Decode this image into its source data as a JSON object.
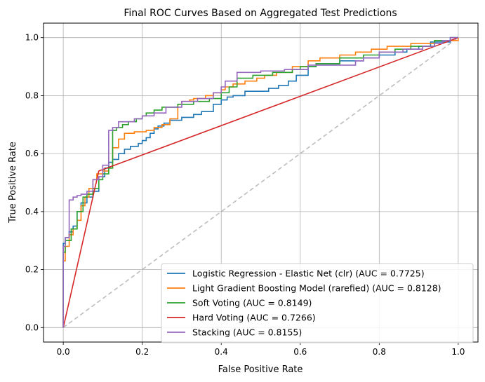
{
  "chart_data": {
    "type": "line",
    "title": "Final ROC Curves Based on Aggregated Test Predictions",
    "xlabel": "False Positive Rate",
    "ylabel": "True Positive Rate",
    "xlim": [
      -0.05,
      1.05
    ],
    "ylim": [
      -0.05,
      1.05
    ],
    "xticks": [
      0.0,
      0.2,
      0.4,
      0.6,
      0.8,
      1.0
    ],
    "yticks": [
      0.0,
      0.2,
      0.4,
      0.6,
      0.8,
      1.0
    ],
    "tick_labels_x": [
      "0.0",
      "0.2",
      "0.4",
      "0.6",
      "0.8",
      "1.0"
    ],
    "tick_labels_y": [
      "0.0",
      "0.2",
      "0.4",
      "0.6",
      "0.8",
      "1.0"
    ],
    "grid": true,
    "legend_position": "lower-right",
    "chance_line": {
      "x": [
        0,
        1
      ],
      "y": [
        0,
        1
      ],
      "color": "#bdbdbd",
      "style": "dashed"
    },
    "series": [
      {
        "name": "Logistic Regression - Elastic Net (clr) (AUC = 0.7725)",
        "color": "#1f77b4",
        "x": [
          0,
          0,
          0.005,
          0.005,
          0.015,
          0.015,
          0.025,
          0.025,
          0.035,
          0.035,
          0.045,
          0.045,
          0.06,
          0.06,
          0.075,
          0.075,
          0.09,
          0.09,
          0.105,
          0.105,
          0.115,
          0.115,
          0.125,
          0.125,
          0.14,
          0.14,
          0.155,
          0.155,
          0.17,
          0.17,
          0.19,
          0.19,
          0.2,
          0.2,
          0.21,
          0.21,
          0.22,
          0.22,
          0.23,
          0.23,
          0.24,
          0.24,
          0.255,
          0.255,
          0.27,
          0.27,
          0.3,
          0.3,
          0.33,
          0.33,
          0.35,
          0.35,
          0.38,
          0.38,
          0.4,
          0.4,
          0.415,
          0.415,
          0.43,
          0.43,
          0.46,
          0.46,
          0.52,
          0.52,
          0.545,
          0.545,
          0.57,
          0.57,
          0.59,
          0.59,
          0.62,
          0.62,
          0.64,
          0.64,
          0.7,
          0.7,
          0.76,
          0.76,
          0.8,
          0.8,
          0.84,
          0.84,
          0.87,
          0.87,
          0.9,
          0.9,
          0.93,
          0.93,
          0.98,
          0.98,
          1.0
        ],
        "y": [
          0,
          0.29,
          0.29,
          0.31,
          0.31,
          0.33,
          0.33,
          0.35,
          0.35,
          0.4,
          0.4,
          0.43,
          0.43,
          0.45,
          0.45,
          0.47,
          0.47,
          0.52,
          0.52,
          0.55,
          0.55,
          0.57,
          0.57,
          0.58,
          0.58,
          0.6,
          0.6,
          0.615,
          0.615,
          0.625,
          0.625,
          0.635,
          0.635,
          0.645,
          0.645,
          0.655,
          0.655,
          0.67,
          0.67,
          0.685,
          0.685,
          0.695,
          0.695,
          0.705,
          0.705,
          0.715,
          0.715,
          0.725,
          0.725,
          0.735,
          0.735,
          0.745,
          0.745,
          0.77,
          0.77,
          0.785,
          0.785,
          0.795,
          0.795,
          0.8,
          0.8,
          0.815,
          0.815,
          0.825,
          0.825,
          0.835,
          0.835,
          0.85,
          0.85,
          0.87,
          0.87,
          0.9,
          0.9,
          0.91,
          0.91,
          0.92,
          0.92,
          0.93,
          0.93,
          0.94,
          0.94,
          0.95,
          0.95,
          0.96,
          0.96,
          0.97,
          0.97,
          0.985,
          0.985,
          1.0,
          1.0
        ]
      },
      {
        "name": "Light Gradient Boosting Model (rarefied) (AUC = 0.8128)",
        "color": "#ff7f0e",
        "x": [
          0,
          0,
          0.005,
          0.005,
          0.015,
          0.015,
          0.025,
          0.025,
          0.035,
          0.035,
          0.045,
          0.045,
          0.055,
          0.055,
          0.065,
          0.065,
          0.075,
          0.075,
          0.085,
          0.085,
          0.1,
          0.1,
          0.115,
          0.115,
          0.125,
          0.125,
          0.14,
          0.14,
          0.155,
          0.155,
          0.18,
          0.18,
          0.21,
          0.21,
          0.23,
          0.23,
          0.25,
          0.25,
          0.27,
          0.27,
          0.29,
          0.29,
          0.3,
          0.3,
          0.32,
          0.32,
          0.33,
          0.33,
          0.36,
          0.36,
          0.38,
          0.38,
          0.4,
          0.4,
          0.41,
          0.41,
          0.43,
          0.43,
          0.46,
          0.46,
          0.49,
          0.49,
          0.51,
          0.51,
          0.54,
          0.54,
          0.58,
          0.58,
          0.62,
          0.62,
          0.65,
          0.65,
          0.7,
          0.7,
          0.74,
          0.74,
          0.78,
          0.78,
          0.82,
          0.82,
          0.88,
          0.88,
          0.94,
          0.94,
          1.0,
          1.0
        ],
        "y": [
          0,
          0.23,
          0.23,
          0.28,
          0.28,
          0.32,
          0.32,
          0.34,
          0.34,
          0.37,
          0.37,
          0.42,
          0.42,
          0.45,
          0.45,
          0.48,
          0.48,
          0.51,
          0.51,
          0.53,
          0.53,
          0.54,
          0.54,
          0.55,
          0.55,
          0.62,
          0.62,
          0.65,
          0.65,
          0.67,
          0.67,
          0.675,
          0.675,
          0.68,
          0.68,
          0.69,
          0.69,
          0.7,
          0.7,
          0.72,
          0.72,
          0.77,
          0.77,
          0.78,
          0.78,
          0.785,
          0.785,
          0.79,
          0.79,
          0.8,
          0.8,
          0.81,
          0.81,
          0.82,
          0.82,
          0.83,
          0.83,
          0.84,
          0.84,
          0.85,
          0.85,
          0.86,
          0.86,
          0.87,
          0.87,
          0.88,
          0.88,
          0.9,
          0.9,
          0.92,
          0.92,
          0.93,
          0.93,
          0.94,
          0.94,
          0.95,
          0.95,
          0.96,
          0.96,
          0.97,
          0.97,
          0.98,
          0.98,
          0.99,
          0.99,
          1.0
        ]
      },
      {
        "name": "Soft Voting (AUC = 0.8149)",
        "color": "#2ca02c",
        "x": [
          0,
          0,
          0.005,
          0.005,
          0.02,
          0.02,
          0.035,
          0.035,
          0.05,
          0.05,
          0.06,
          0.06,
          0.075,
          0.075,
          0.09,
          0.09,
          0.1,
          0.1,
          0.115,
          0.115,
          0.125,
          0.125,
          0.135,
          0.135,
          0.15,
          0.15,
          0.165,
          0.165,
          0.185,
          0.185,
          0.2,
          0.2,
          0.21,
          0.21,
          0.23,
          0.23,
          0.25,
          0.25,
          0.29,
          0.29,
          0.33,
          0.33,
          0.37,
          0.37,
          0.4,
          0.4,
          0.42,
          0.42,
          0.44,
          0.44,
          0.48,
          0.48,
          0.53,
          0.53,
          0.58,
          0.58,
          0.6,
          0.6,
          0.64,
          0.64,
          0.7,
          0.7,
          0.76,
          0.76,
          0.8,
          0.8,
          0.84,
          0.84,
          0.88,
          0.88,
          0.94,
          0.94,
          0.98,
          0.98,
          1.0
        ],
        "y": [
          0,
          0.26,
          0.26,
          0.3,
          0.3,
          0.34,
          0.34,
          0.4,
          0.4,
          0.45,
          0.45,
          0.46,
          0.46,
          0.48,
          0.48,
          0.51,
          0.51,
          0.53,
          0.53,
          0.55,
          0.55,
          0.68,
          0.68,
          0.69,
          0.69,
          0.7,
          0.7,
          0.71,
          0.71,
          0.72,
          0.72,
          0.73,
          0.73,
          0.74,
          0.74,
          0.75,
          0.75,
          0.76,
          0.76,
          0.77,
          0.77,
          0.78,
          0.78,
          0.79,
          0.79,
          0.81,
          0.81,
          0.83,
          0.83,
          0.86,
          0.86,
          0.87,
          0.87,
          0.88,
          0.88,
          0.89,
          0.89,
          0.9,
          0.9,
          0.91,
          0.91,
          0.93,
          0.93,
          0.94,
          0.94,
          0.95,
          0.95,
          0.96,
          0.96,
          0.97,
          0.97,
          0.99,
          0.99,
          1.0,
          1.0
        ]
      },
      {
        "name": "Hard Voting (AUC = 0.7266)",
        "color": "#d62728",
        "x": [
          0,
          0.09,
          0.15,
          1.0
        ],
        "y": [
          0,
          0.54,
          0.57,
          1.0
        ]
      },
      {
        "name": "Stacking (AUC = 0.8155)",
        "color": "#9467bd",
        "x": [
          0,
          0,
          0.005,
          0.005,
          0.015,
          0.015,
          0.025,
          0.025,
          0.035,
          0.035,
          0.045,
          0.045,
          0.06,
          0.06,
          0.075,
          0.075,
          0.09,
          0.09,
          0.1,
          0.1,
          0.115,
          0.115,
          0.125,
          0.125,
          0.14,
          0.14,
          0.18,
          0.18,
          0.2,
          0.2,
          0.23,
          0.23,
          0.26,
          0.26,
          0.3,
          0.3,
          0.34,
          0.34,
          0.38,
          0.38,
          0.4,
          0.4,
          0.41,
          0.41,
          0.44,
          0.44,
          0.5,
          0.5,
          0.56,
          0.56,
          0.62,
          0.62,
          0.74,
          0.74,
          0.76,
          0.76,
          0.8,
          0.8,
          0.86,
          0.86,
          0.91,
          0.91,
          0.94,
          0.94,
          0.96,
          0.96,
          0.98,
          0.98,
          1.0
        ],
        "y": [
          0,
          0.28,
          0.28,
          0.31,
          0.31,
          0.44,
          0.44,
          0.45,
          0.45,
          0.455,
          0.455,
          0.46,
          0.46,
          0.47,
          0.47,
          0.51,
          0.51,
          0.52,
          0.52,
          0.56,
          0.56,
          0.68,
          0.68,
          0.69,
          0.69,
          0.71,
          0.71,
          0.72,
          0.72,
          0.73,
          0.73,
          0.74,
          0.74,
          0.76,
          0.76,
          0.78,
          0.78,
          0.79,
          0.79,
          0.81,
          0.81,
          0.83,
          0.83,
          0.85,
          0.85,
          0.88,
          0.88,
          0.885,
          0.885,
          0.89,
          0.89,
          0.905,
          0.905,
          0.92,
          0.92,
          0.93,
          0.93,
          0.95,
          0.95,
          0.96,
          0.96,
          0.97,
          0.97,
          0.98,
          0.98,
          0.99,
          0.99,
          1.0,
          1.0
        ]
      }
    ]
  }
}
